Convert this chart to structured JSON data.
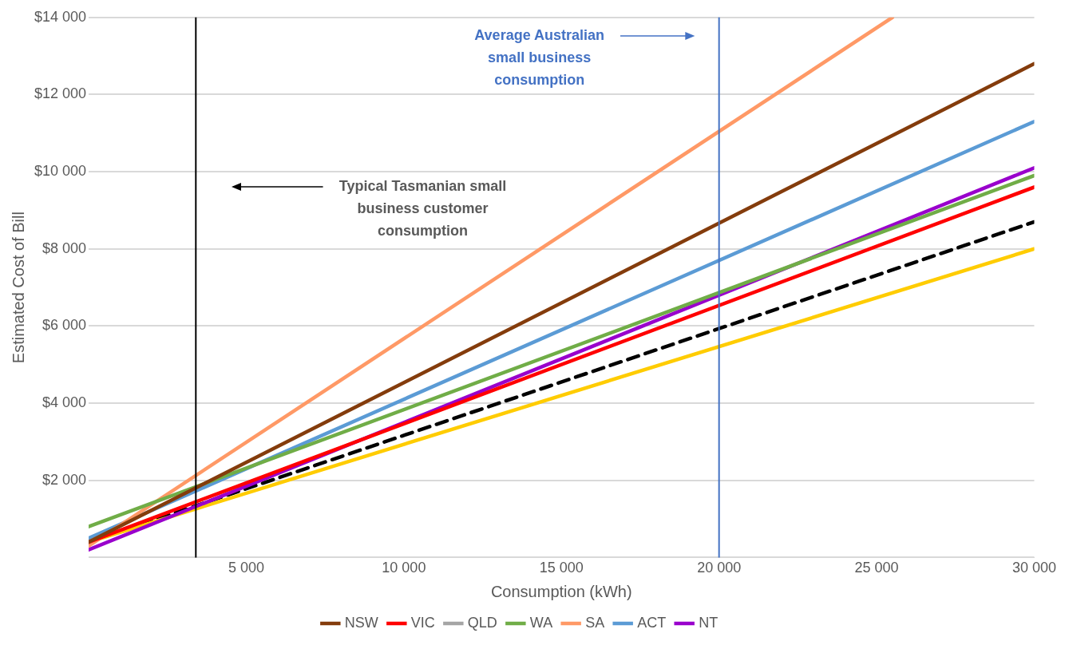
{
  "chart_data": {
    "type": "line",
    "xlabel": "Consumption (kWh)",
    "ylabel": "Estimated Cost of Bill",
    "x": [
      0,
      30000
    ],
    "series": [
      {
        "name": "NSW",
        "color": "#843c0c",
        "values": [
          400,
          12800
        ]
      },
      {
        "name": "VIC",
        "color": "#ff0000",
        "values": [
          400,
          9600
        ]
      },
      {
        "name": "QLD",
        "color": "#a5a5a5",
        "values": [
          null,
          null
        ]
      },
      {
        "name": "WA",
        "color": "#70ad47",
        "values": [
          800,
          9900
        ]
      },
      {
        "name": "SA",
        "color": "#ff9966",
        "x": [
          0,
          25500
        ],
        "values": [
          300,
          14000
        ]
      },
      {
        "name": "ACT",
        "color": "#5b9bd5",
        "values": [
          500,
          11300
        ]
      },
      {
        "name": "NT",
        "color": "#9900cc",
        "values": [
          200,
          10100
        ]
      },
      {
        "color": "#ffcc00",
        "values": [
          400,
          8000
        ]
      },
      {
        "color": "#000000",
        "values": [
          400,
          8700
        ],
        "line_style": "dashed"
      }
    ],
    "xlim": [
      0,
      30000
    ],
    "xticks": [
      5000,
      10000,
      15000,
      20000,
      25000,
      30000
    ],
    "ylim": [
      0,
      14000
    ],
    "yticks": [
      {
        "value": 0,
        "label": null
      },
      {
        "value": 2000,
        "label": "$2 000"
      },
      {
        "value": 4000,
        "label": "$4 000"
      },
      {
        "value": 6000,
        "label": "$6 000"
      },
      {
        "value": 8000,
        "label": "$8 000"
      },
      {
        "value": 10000,
        "label": "$10 000"
      },
      {
        "value": 12000,
        "label": "$12 000"
      },
      {
        "value": 14000,
        "label": "$14 000"
      }
    ],
    "grid": "y",
    "legend": "bottom",
    "marker": "none",
    "line_style": "solid",
    "ref_lines": [
      {
        "axis": "x",
        "value": 3400,
        "color": "#000000"
      },
      {
        "axis": "x",
        "value": 20000,
        "color": "#4472c4"
      }
    ],
    "annotations": [
      "Typical Tasmanian small\nbusiness customer\nconsumption",
      "Average Australian\nsmall business\nconsumption"
    ]
  }
}
